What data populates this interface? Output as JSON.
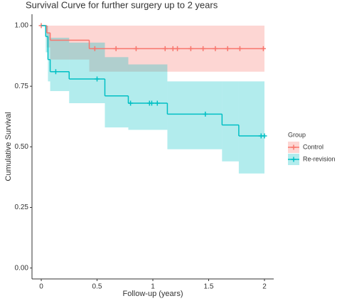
{
  "chart_data": {
    "type": "survival",
    "title": "Survival Curve for further surgery up to 2 years",
    "x_label": "Follow-up (years)",
    "y_label": "Cumulative Survival",
    "legend_title": "Group",
    "xlim": [
      -0.083,
      2.083
    ],
    "ylim": [
      -0.045,
      1.047
    ],
    "xticks": [
      0,
      0.5,
      1,
      1.5,
      2
    ],
    "yticks": [
      {
        "value": 0,
        "label": "0.00"
      },
      {
        "value": 0.25,
        "label": "0.25"
      },
      {
        "value": 0.5,
        "label": "0.50"
      },
      {
        "value": 0.75,
        "label": "0.75"
      },
      {
        "value": 1,
        "label": "1.00"
      }
    ],
    "series": [
      {
        "name": "Control",
        "color": "#F8766D",
        "x": [
          0,
          0.05,
          0.08,
          0.43,
          2.0
        ],
        "values": [
          1.0,
          0.97,
          0.94,
          0.905,
          0.905
        ],
        "lower": [
          1.0,
          0.91,
          0.86,
          0.81,
          0.81
        ],
        "upper": [
          1.0,
          1.0,
          1.0,
          1.0,
          1.0
        ],
        "censored": {
          "x": [
            0,
            0.48,
            0.67,
            0.85,
            1.11,
            1.18,
            1.22,
            1.34,
            1.45,
            1.56,
            1.67,
            1.78,
            1.99
          ],
          "values": [
            1.0,
            0.905,
            0.905,
            0.905,
            0.905,
            0.905,
            0.905,
            0.905,
            0.905,
            0.905,
            0.905,
            0.905,
            0.905
          ]
        }
      },
      {
        "name": "Re-revision",
        "color": "#00BFC4",
        "x": [
          0,
          0.04,
          0.06,
          0.08,
          0.25,
          0.57,
          0.78,
          1.13,
          1.62,
          1.77,
          2.0
        ],
        "values": [
          1.0,
          0.955,
          0.86,
          0.81,
          0.78,
          0.71,
          0.68,
          0.635,
          0.59,
          0.545,
          0.545
        ],
        "lower": [
          1.0,
          0.89,
          0.77,
          0.73,
          0.68,
          0.58,
          0.57,
          0.49,
          0.44,
          0.39,
          0.39
        ],
        "upper": [
          1.0,
          1.0,
          0.97,
          0.95,
          0.93,
          0.87,
          0.84,
          0.77,
          0.77,
          0.77,
          0.77
        ],
        "censored": {
          "x": [
            0.13,
            0.5,
            0.8,
            0.97,
            0.99,
            1.04,
            1.47,
            1.97,
            2.0
          ],
          "values": [
            0.81,
            0.78,
            0.68,
            0.68,
            0.68,
            0.68,
            0.635,
            0.545,
            0.545
          ]
        }
      }
    ]
  }
}
